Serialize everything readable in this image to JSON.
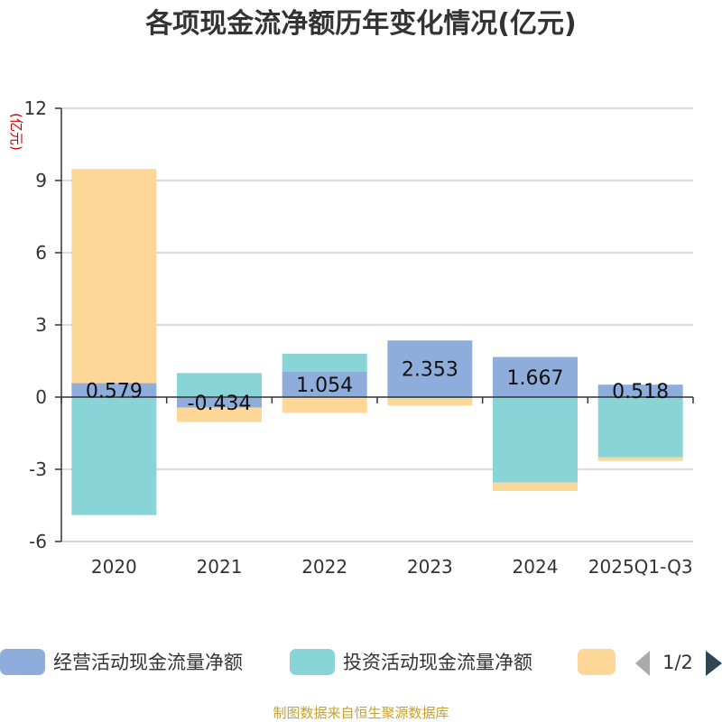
{
  "chart_data": {
    "type": "bar",
    "stacked": true,
    "title": "各项现金流净额历年变化情况(亿元)",
    "ylabel": "(亿元)",
    "xlabel": "",
    "ylim": [
      -6,
      12
    ],
    "yticks": [
      -6,
      -3,
      0,
      3,
      6,
      9,
      12
    ],
    "categories": [
      "2020",
      "2021",
      "2022",
      "2023",
      "2024",
      "2025Q1-Q3"
    ],
    "series": [
      {
        "name": "经营活动现金流量净额",
        "color": "#8eaddb",
        "values": [
          0.579,
          -0.434,
          1.054,
          2.353,
          1.667,
          0.518
        ],
        "labels": [
          "0.579",
          "-0.434",
          "1.054",
          "2.353",
          "1.667",
          "0.518"
        ]
      },
      {
        "name": "投资活动现金流量净额",
        "color": "#88d4d6",
        "values": [
          -4.9,
          1.0,
          0.75,
          -0.05,
          -3.55,
          -2.5
        ]
      },
      {
        "name": "",
        "color": "#fdd797",
        "values": [
          8.9,
          -0.6,
          -0.65,
          -0.3,
          -0.35,
          -0.15
        ]
      }
    ],
    "legend": {
      "position": "bottom",
      "page": "1/2"
    },
    "source": "制图数据来自恒生聚源数据库"
  }
}
